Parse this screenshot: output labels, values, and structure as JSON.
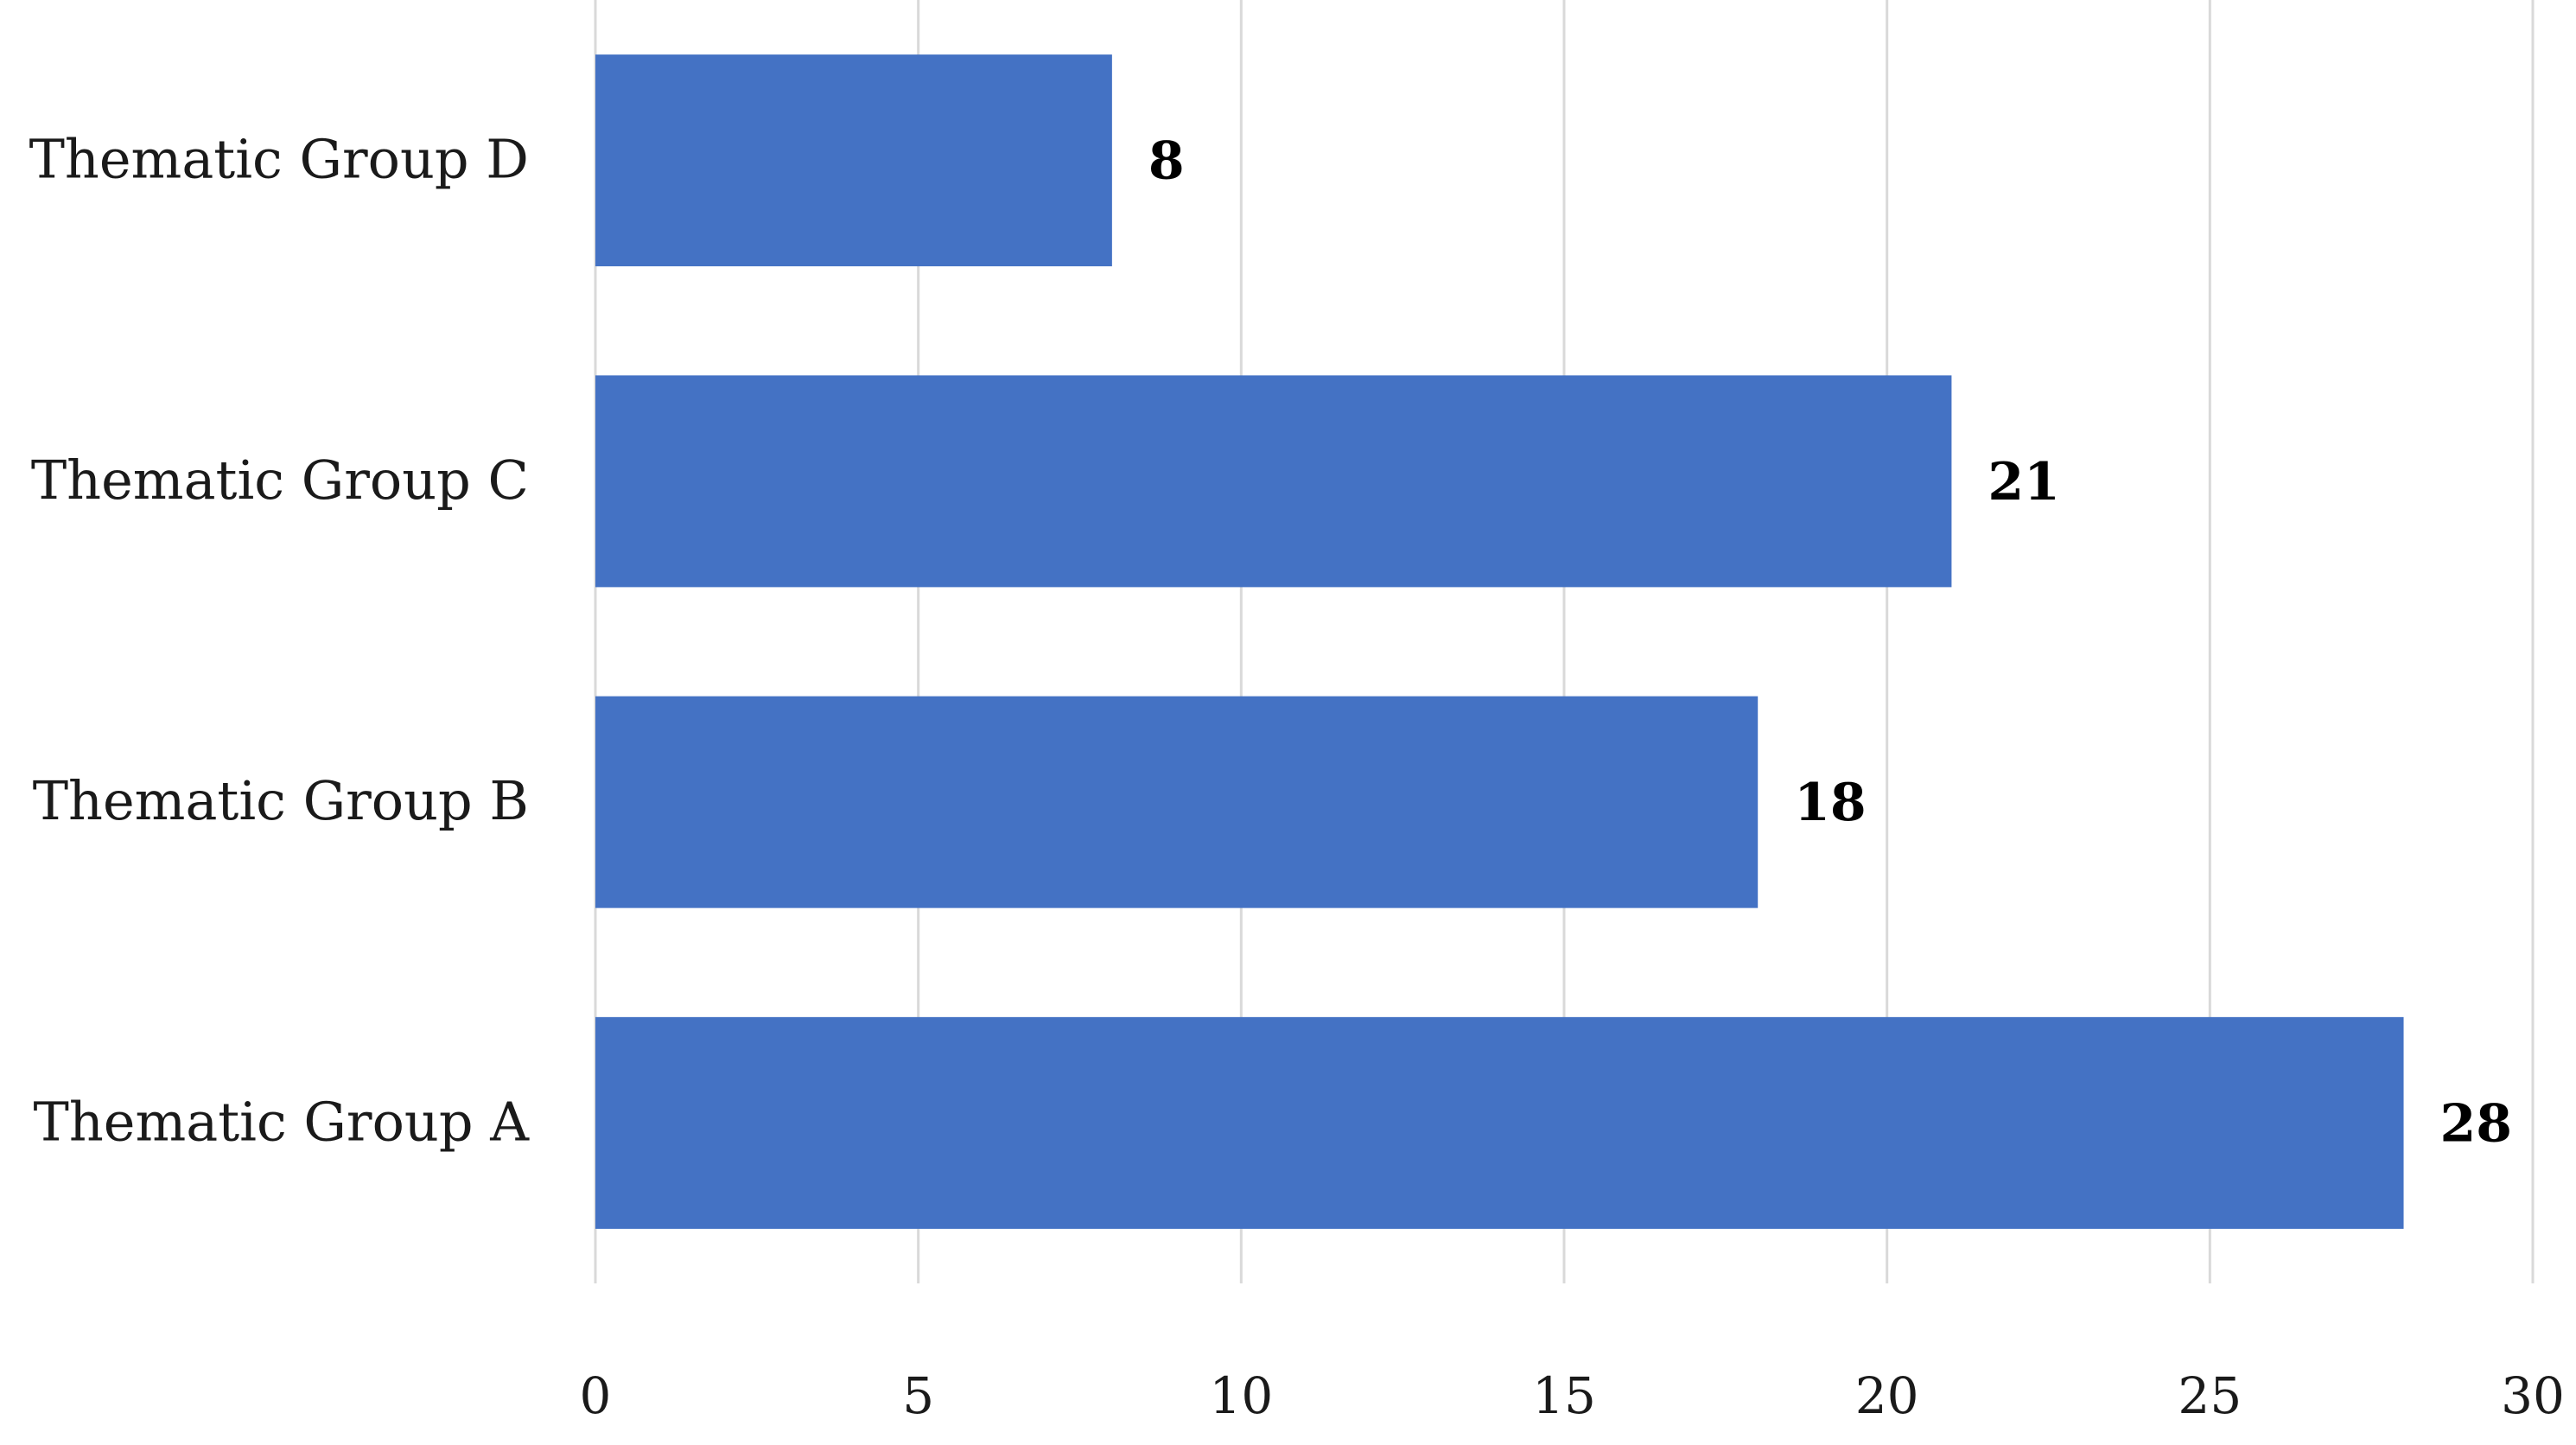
{
  "chart_data": {
    "type": "bar",
    "orientation": "horizontal",
    "title": "",
    "xlabel": "",
    "ylabel": "",
    "categories": [
      "Thematic Group D",
      "Thematic Group C",
      "Thematic Group B",
      "Thematic Group A"
    ],
    "values": [
      8,
      21,
      18,
      28
    ],
    "data_labels": [
      "8",
      "21",
      "18",
      "28"
    ],
    "xlim": [
      0,
      30
    ],
    "x_ticks": [
      0,
      5,
      10,
      15,
      20,
      25,
      30
    ],
    "grid": "vertical",
    "legend": "none",
    "bar_color": "#4472C4"
  }
}
